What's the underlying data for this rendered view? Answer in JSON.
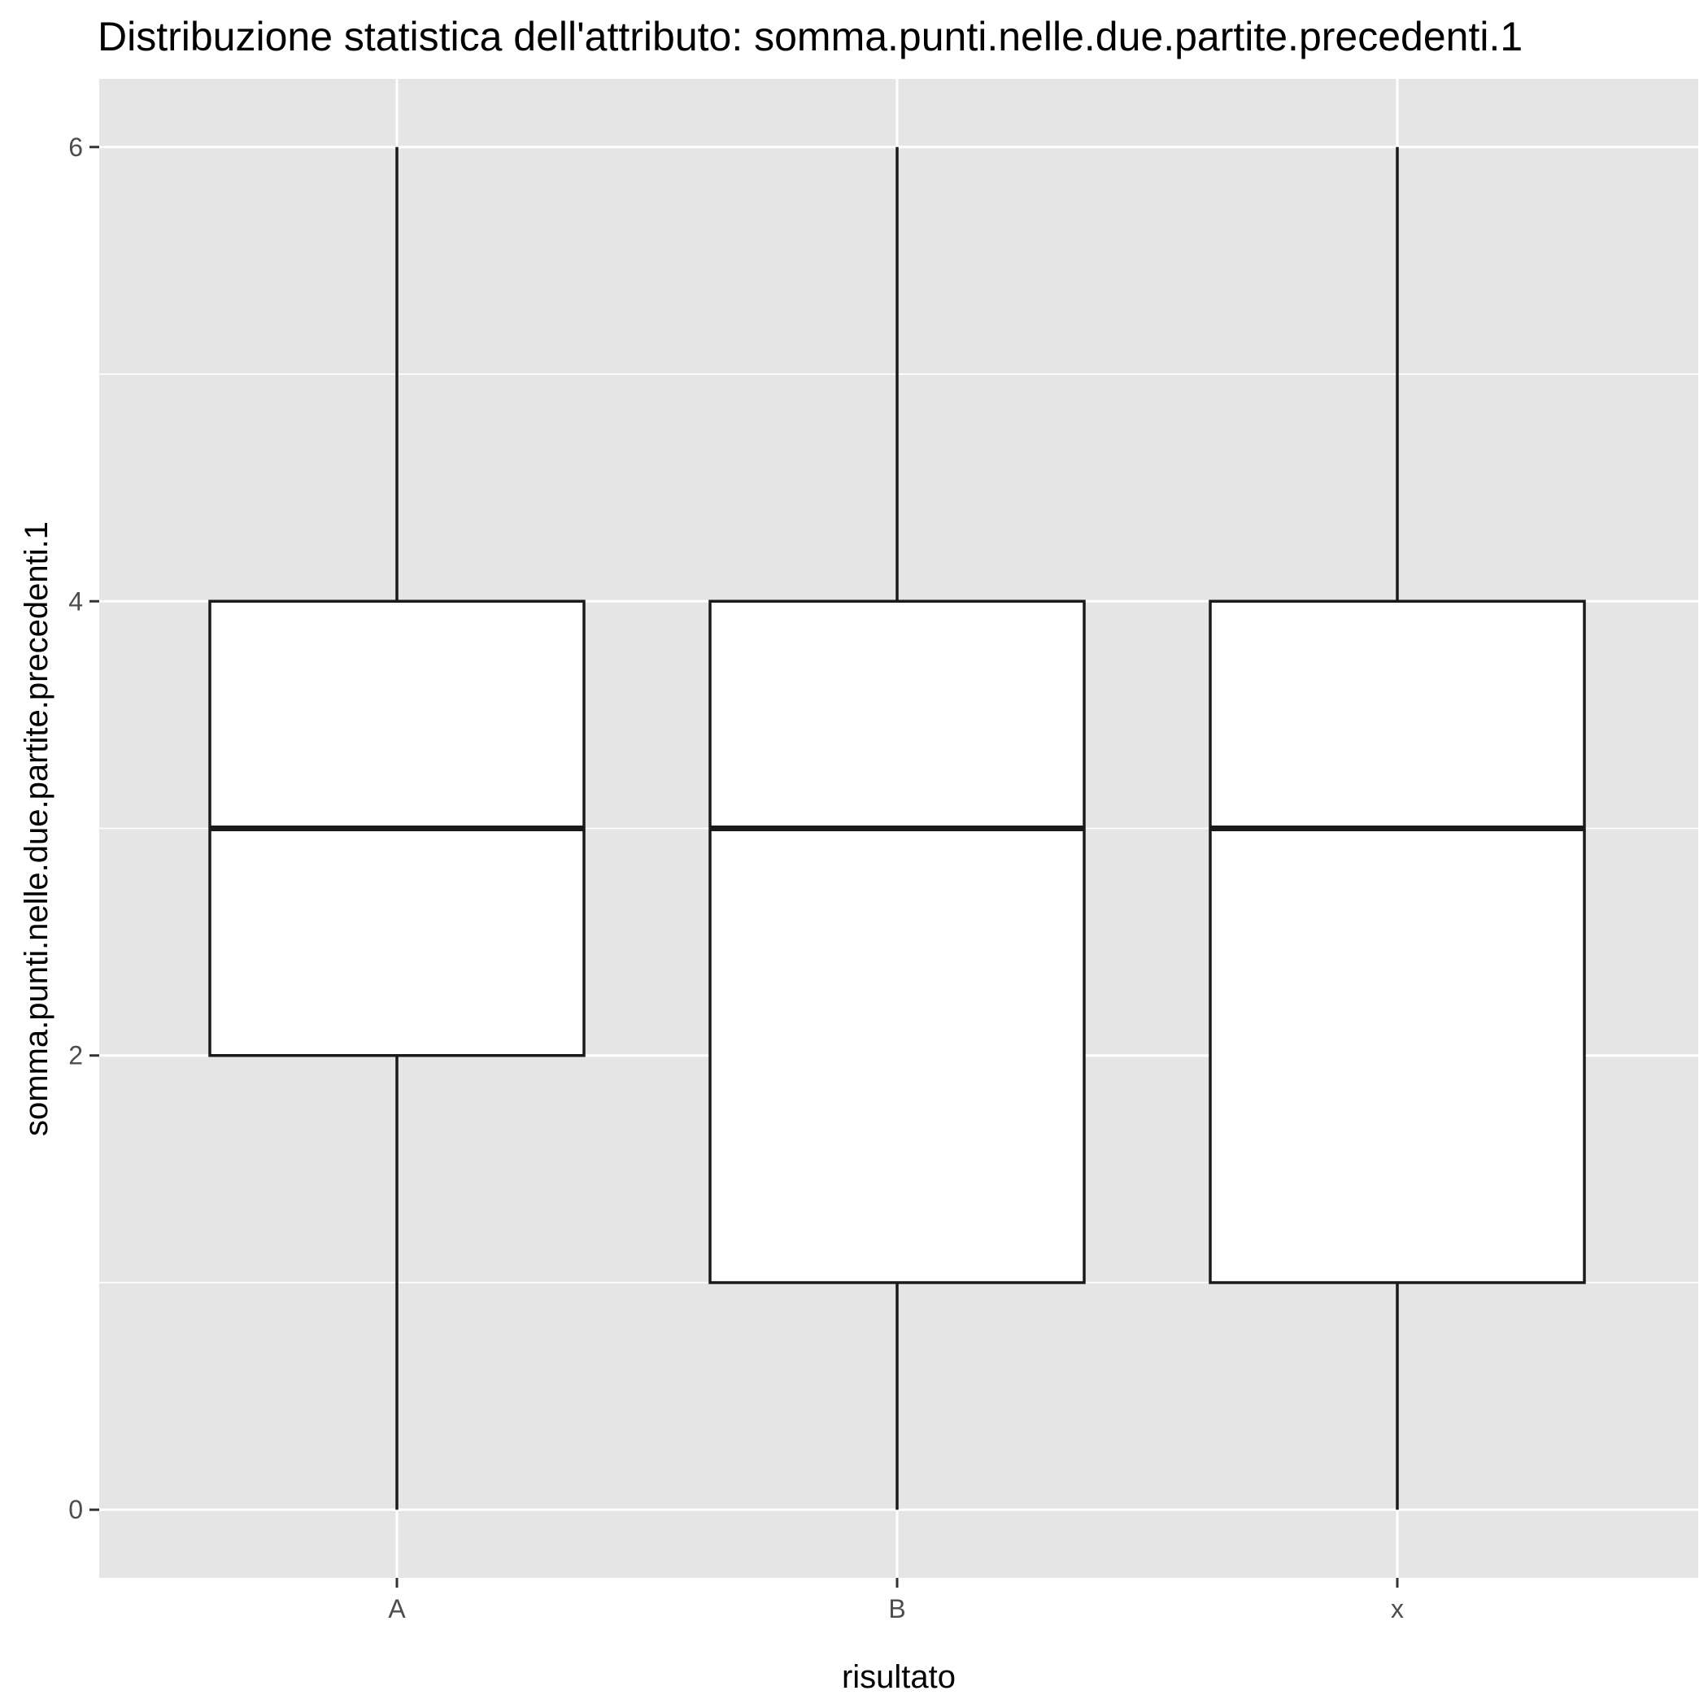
{
  "chart_data": {
    "type": "boxplot",
    "title": "Distribuzione statistica dell'attributo: somma.punti.nelle.due.partite.precedenti.1",
    "xlabel": "risultato",
    "ylabel": "somma.punti.nelle.due.partite.precedenti.1",
    "categories": [
      "A",
      "B",
      "x"
    ],
    "boxes": [
      {
        "category": "A",
        "min": 0,
        "q1": 2,
        "median": 3,
        "q3": 4,
        "max": 6
      },
      {
        "category": "B",
        "min": 0,
        "q1": 1,
        "median": 3,
        "q3": 4,
        "max": 6
      },
      {
        "category": "x",
        "min": 0,
        "q1": 1,
        "median": 3,
        "q3": 4,
        "max": 6
      }
    ],
    "y_ticks": [
      0,
      2,
      4,
      6
    ],
    "ylim": [
      -0.3,
      6.3
    ],
    "grid": true,
    "legend": "none",
    "colors": {
      "panel": "#e5e5e5",
      "grid": "#ffffff",
      "box_fill": "#ffffff",
      "box_stroke": "#1a1a1a",
      "tick_text": "#4d4d4d"
    }
  }
}
